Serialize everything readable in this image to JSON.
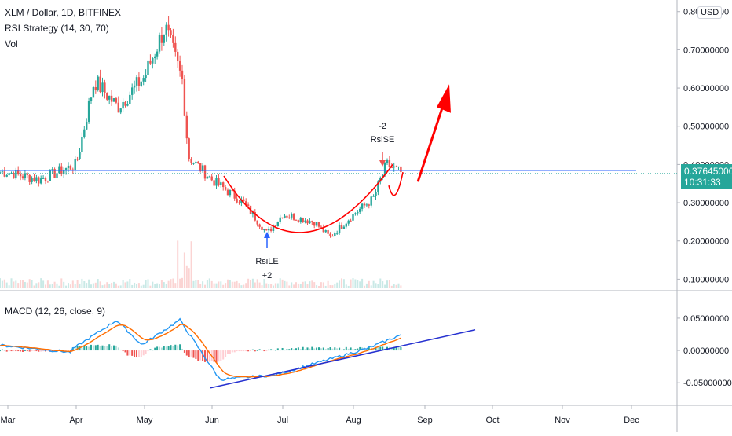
{
  "header": {
    "title": "XLM / Dollar, 1D, BITFINEX",
    "strategy": "RSI Strategy (14, 30, 70)",
    "vol": "Vol",
    "currency_button": "USD"
  },
  "macd_panel": {
    "title": "MACD (12, 26, close, 9)"
  },
  "price_badge": {
    "price": "0.37645000",
    "countdown": "10:31:33"
  },
  "annotations": {
    "short_qty": "-2",
    "short_label": "RsiSE",
    "long_label": "RsiLE",
    "long_qty": "+2"
  },
  "colors": {
    "up": "#26a69a",
    "down": "#ef5350",
    "ma_blue": "#2962ff",
    "signal_orange": "#ff6d00",
    "macd_line": "#2196f3",
    "annotation_red": "#ff0000"
  },
  "chart_data": [
    {
      "type": "candlestick",
      "title": "XLM / Dollar, 1D, BITFINEX",
      "x_ticks": [
        "Mar",
        "Apr",
        "May",
        "Jun",
        "Jul",
        "Aug",
        "Sep",
        "Oct",
        "Nov",
        "Dec"
      ],
      "y_ticks": [
        "0.80000000",
        "0.70000000",
        "0.60000000",
        "0.50000000",
        "0.40000000",
        "0.30000000",
        "0.20000000",
        "0.10000000"
      ],
      "ylim": [
        0.07,
        0.82
      ],
      "last_price": 0.37645,
      "horizontal_line": 0.385,
      "price_path": [
        {
          "x": "Mar",
          "y": 0.38
        },
        {
          "x": "Mar 15",
          "y": 0.36
        },
        {
          "x": "Apr",
          "y": 0.4
        },
        {
          "x": "Apr 10",
          "y": 0.62
        },
        {
          "x": "Apr 20",
          "y": 0.55
        },
        {
          "x": "May",
          "y": 0.63
        },
        {
          "x": "May 10",
          "y": 0.76
        },
        {
          "x": "May 17",
          "y": 0.62
        },
        {
          "x": "May 20",
          "y": 0.42
        },
        {
          "x": "Jun",
          "y": 0.36
        },
        {
          "x": "Jun 15",
          "y": 0.3
        },
        {
          "x": "Jun 25",
          "y": 0.22
        },
        {
          "x": "Jul",
          "y": 0.27
        },
        {
          "x": "Jul 15",
          "y": 0.25
        },
        {
          "x": "Jul 25",
          "y": 0.21
        },
        {
          "x": "Aug",
          "y": 0.27
        },
        {
          "x": "Aug 10",
          "y": 0.31
        },
        {
          "x": "Aug 17",
          "y": 0.4
        },
        {
          "x": "Aug 20",
          "y": 0.377
        }
      ]
    },
    {
      "type": "bar",
      "title": "MACD (12, 26, close, 9)",
      "y_ticks": [
        "0.05000000",
        "0.00000000",
        "-0.05000000"
      ],
      "ylim": [
        -0.085,
        0.09
      ]
    }
  ]
}
